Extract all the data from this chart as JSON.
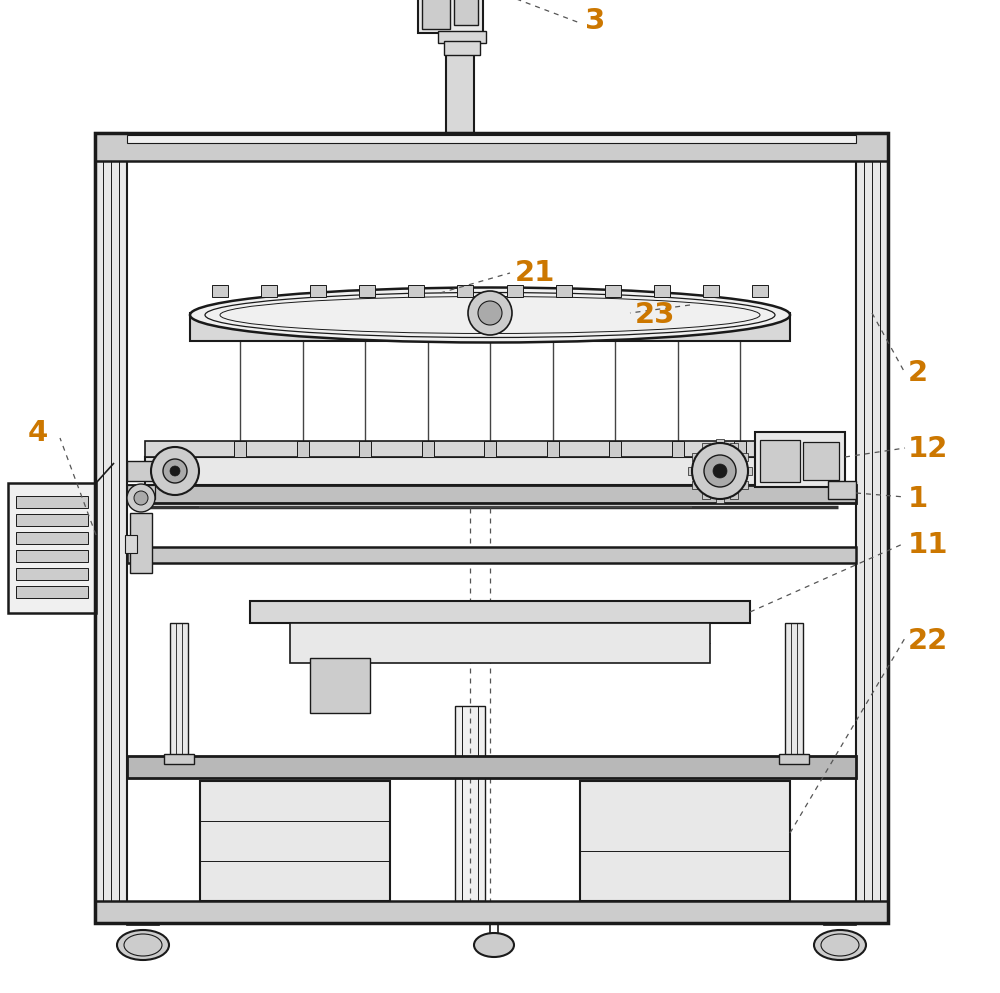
{
  "background_color": "#ffffff",
  "line_color": "#1a1a1a",
  "label_color": "#cc7700",
  "figsize": [
    10.0,
    9.93
  ],
  "dpi": 100,
  "label_fontsize": 21,
  "gray_light": "#e8e8e8",
  "gray_mid": "#cccccc",
  "gray_dark": "#aaaaaa",
  "gray_fill": "#d8d8d8"
}
